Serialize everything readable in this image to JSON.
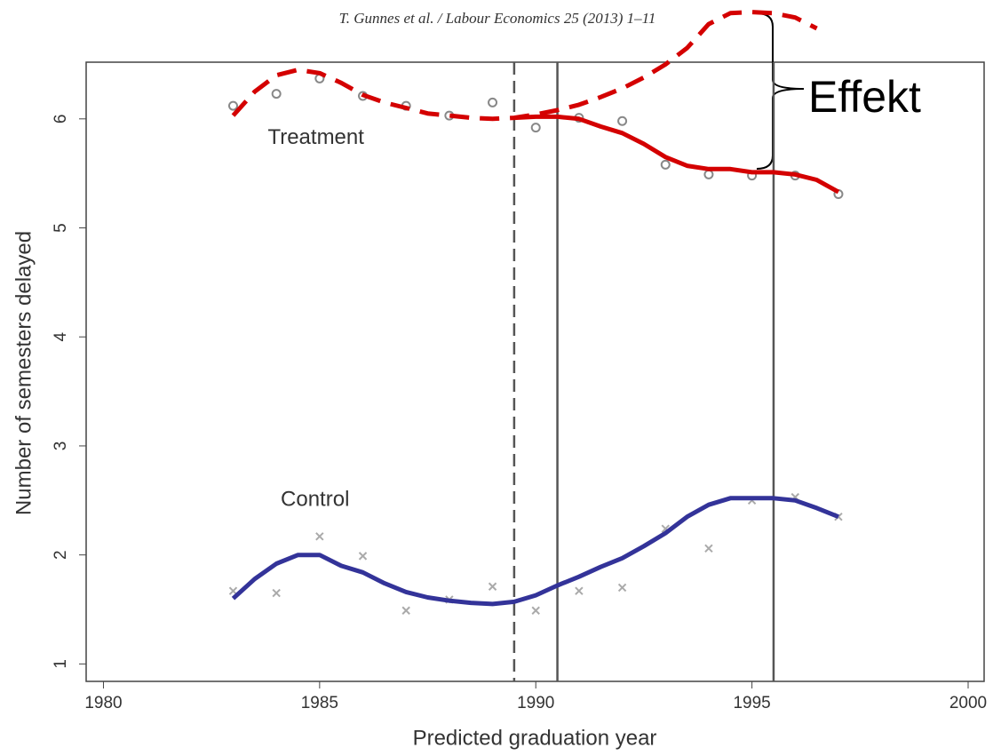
{
  "header": {
    "citation": "T. Gunnes et al. / Labour Economics 25 (2013) 1–11"
  },
  "chart_data": {
    "type": "line",
    "xlabel": "Predicted graduation year",
    "ylabel": "Number of semesters delayed",
    "xlim": [
      1979.6,
      2000.37
    ],
    "ylim": [
      0.84,
      6.52
    ],
    "xticks": [
      1980,
      1985,
      1990,
      1995,
      2000
    ],
    "yticks": [
      1,
      2,
      3,
      4,
      5,
      6
    ],
    "vlines": [
      {
        "x": 1989.5,
        "style": "dashed"
      },
      {
        "x": 1990.5,
        "style": "solid"
      },
      {
        "x": 1995.5,
        "style": "solid"
      }
    ],
    "annotations": [
      {
        "text": "Treatment",
        "x": 1983.8,
        "y": 5.82
      },
      {
        "text": "Control",
        "x": 1984.1,
        "y": 2.5
      },
      {
        "text": "Effekt"
      }
    ],
    "series": [
      {
        "type": "scatter",
        "marker": "circle",
        "color": "#888888",
        "x": [
          1983,
          1984,
          1985,
          1986,
          1987,
          1988,
          1989,
          1990,
          1991,
          1992,
          1993,
          1994,
          1995,
          1996,
          1997
        ],
        "values": [
          6.12,
          6.23,
          6.37,
          6.21,
          6.12,
          6.03,
          6.15,
          5.92,
          6.01,
          5.98,
          5.58,
          5.49,
          5.48,
          5.48,
          5.31
        ]
      },
      {
        "type": "scatter",
        "marker": "cross",
        "color": "#aaaaaa",
        "x": [
          1983,
          1984,
          1985,
          1986,
          1987,
          1988,
          1989,
          1990,
          1991,
          1992,
          1993,
          1994,
          1995,
          1996,
          1997
        ],
        "values": [
          1.67,
          1.65,
          2.17,
          1.99,
          1.49,
          1.59,
          1.71,
          1.49,
          1.67,
          1.7,
          2.24,
          2.06,
          2.5,
          2.53,
          2.35
        ]
      },
      {
        "type": "line",
        "color": "#d40000",
        "dash": false,
        "x": [
          1989.5,
          1990,
          1990.5,
          1991,
          1991.5,
          1992,
          1992.5,
          1993,
          1993.5,
          1994,
          1994.5,
          1995,
          1995.5,
          1996,
          1996.5,
          1997
        ],
        "values": [
          6.01,
          6.02,
          6.02,
          6.0,
          5.93,
          5.87,
          5.77,
          5.65,
          5.57,
          5.54,
          5.54,
          5.51,
          5.51,
          5.49,
          5.44,
          5.33
        ]
      },
      {
        "type": "line",
        "color": "#d40000",
        "dash": true,
        "x": [
          1983,
          1983.5,
          1984,
          1984.5,
          1985,
          1985.5,
          1986,
          1986.5,
          1987,
          1987.5,
          1988,
          1988.5,
          1989,
          1989.5,
          1990,
          1990.5,
          1991,
          1991.5,
          1992,
          1992.5,
          1993,
          1993.5,
          1994,
          1994.5,
          1995,
          1995.5,
          1996,
          1996.5
        ],
        "values": [
          6.03,
          6.25,
          6.4,
          6.45,
          6.42,
          6.33,
          6.22,
          6.15,
          6.1,
          6.05,
          6.03,
          6.01,
          6.0,
          6.01,
          6.04,
          6.08,
          6.13,
          6.2,
          6.28,
          6.38,
          6.5,
          6.65,
          6.87,
          6.97,
          6.98,
          6.97,
          6.93,
          6.83
        ]
      },
      {
        "type": "line",
        "color": "#333399",
        "dash": false,
        "x": [
          1983,
          1983.5,
          1984,
          1984.5,
          1985,
          1985.5,
          1986,
          1986.5,
          1987,
          1987.5,
          1988,
          1988.5,
          1989,
          1989.5,
          1990,
          1990.5,
          1991,
          1991.5,
          1992,
          1992.5,
          1993,
          1993.5,
          1994,
          1994.5,
          1995,
          1995.5,
          1996,
          1996.5,
          1997
        ],
        "values": [
          1.6,
          1.78,
          1.92,
          2.0,
          2.0,
          1.9,
          1.84,
          1.74,
          1.66,
          1.61,
          1.58,
          1.56,
          1.55,
          1.57,
          1.63,
          1.72,
          1.8,
          1.89,
          1.97,
          2.08,
          2.2,
          2.35,
          2.46,
          2.52,
          2.52,
          2.52,
          2.5,
          2.43,
          2.35
        ]
      }
    ]
  }
}
